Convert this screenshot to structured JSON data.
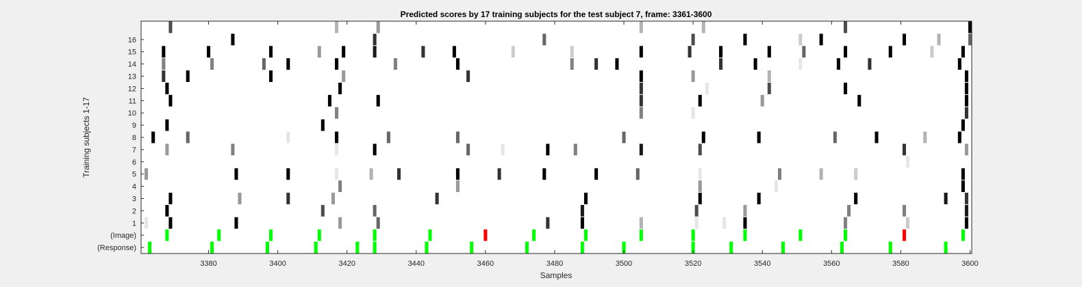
{
  "chart_data": {
    "type": "heatmap",
    "title": "Predicted scores by 17 training subjects for the test subject 7, frame: 3361-3600",
    "xlabel": "Samples",
    "ylabel": "Training subjects 1-17",
    "xlim": [
      3361,
      3600
    ],
    "xticks": [
      3380,
      3400,
      3420,
      3440,
      3460,
      3480,
      3500,
      3520,
      3540,
      3560,
      3580,
      3600
    ],
    "row_labels": [
      "(Response)",
      "(Image)",
      "1",
      "2",
      "3",
      "4",
      "5",
      "6",
      "7",
      "8",
      "9",
      "10",
      "11",
      "12",
      "13",
      "14",
      "15",
      "16",
      ""
    ],
    "colors": {
      "background": "#f0f0f0",
      "plot_bg": "#ffffff",
      "correct": "#00ff00",
      "incorrect": "#ff0000",
      "score_dark": "#000000"
    },
    "marker_encoding": "value = gray darkness 0-1 (1 = black); green = correct marker, red = incorrect marker",
    "response_markers": [
      3363,
      3381,
      3397,
      3411,
      3423,
      3428,
      3443,
      3456,
      3472,
      3488,
      3500,
      3520,
      3531,
      3546,
      3563,
      3577,
      3593
    ],
    "image_markers": [
      {
        "x": 3368,
        "status": "correct"
      },
      {
        "x": 3383,
        "status": "correct"
      },
      {
        "x": 3398,
        "status": "correct"
      },
      {
        "x": 3412,
        "status": "correct"
      },
      {
        "x": 3428,
        "status": "correct"
      },
      {
        "x": 3444,
        "status": "correct"
      },
      {
        "x": 3460,
        "status": "incorrect"
      },
      {
        "x": 3474,
        "status": "correct"
      },
      {
        "x": 3489,
        "status": "correct"
      },
      {
        "x": 3505,
        "status": "correct"
      },
      {
        "x": 3520,
        "status": "correct"
      },
      {
        "x": 3535,
        "status": "correct"
      },
      {
        "x": 3551,
        "status": "correct"
      },
      {
        "x": 3564,
        "status": "correct"
      },
      {
        "x": 3581,
        "status": "incorrect"
      },
      {
        "x": 3598,
        "status": "correct"
      }
    ],
    "subject_scores": [
      {
        "row": 1,
        "cells": [
          [
            3362,
            0.1
          ],
          [
            3369,
            1
          ],
          [
            3388,
            1
          ],
          [
            3418,
            0.4
          ],
          [
            3429,
            0.6
          ],
          [
            3478,
            0.8
          ],
          [
            3488,
            1
          ],
          [
            3505,
            0.3
          ],
          [
            3521,
            0.1
          ],
          [
            3529,
            0.1
          ],
          [
            3535,
            1
          ],
          [
            3564,
            0.5
          ],
          [
            3582,
            0.2
          ],
          [
            3599,
            1
          ]
        ]
      },
      {
        "row": 2,
        "cells": [
          [
            3368,
            1
          ],
          [
            3413,
            0.7
          ],
          [
            3428,
            0.6
          ],
          [
            3488,
            0.9
          ],
          [
            3521,
            0.7
          ],
          [
            3535,
            0.4
          ],
          [
            3565,
            0.5
          ],
          [
            3581,
            0.5
          ],
          [
            3599,
            0.9
          ]
        ]
      },
      {
        "row": 3,
        "cells": [
          [
            3369,
            1
          ],
          [
            3389,
            0.4
          ],
          [
            3403,
            0.8
          ],
          [
            3416,
            0.4
          ],
          [
            3446,
            0.8
          ],
          [
            3489,
            1
          ],
          [
            3522,
            1
          ],
          [
            3539,
            1
          ],
          [
            3567,
            1
          ],
          [
            3593,
            0.9
          ],
          [
            3599,
            0.8
          ]
        ]
      },
      {
        "row": 4,
        "cells": [
          [
            3418,
            0.5
          ],
          [
            3452,
            0.4
          ],
          [
            3522,
            0.4
          ],
          [
            3544,
            0.1
          ],
          [
            3598,
            1
          ]
        ]
      },
      {
        "row": 5,
        "cells": [
          [
            3362,
            0.4
          ],
          [
            3388,
            1
          ],
          [
            3403,
            1
          ],
          [
            3417,
            0.1
          ],
          [
            3427,
            0.3
          ],
          [
            3435,
            0.8
          ],
          [
            3452,
            1
          ],
          [
            3464,
            0.8
          ],
          [
            3477,
            1
          ],
          [
            3492,
            1
          ],
          [
            3504,
            0.6
          ],
          [
            3522,
            0.1
          ],
          [
            3545,
            0.5
          ],
          [
            3557,
            0.3
          ],
          [
            3567,
            0.2
          ],
          [
            3598,
            1
          ]
        ]
      },
      {
        "row": 6,
        "cells": [
          [
            3582,
            0.1
          ]
        ]
      },
      {
        "row": 7,
        "cells": [
          [
            3368,
            0.4
          ],
          [
            3387,
            0.5
          ],
          [
            3417,
            0.1
          ],
          [
            3428,
            1
          ],
          [
            3455,
            0.6
          ],
          [
            3465,
            0.1
          ],
          [
            3478,
            1
          ],
          [
            3486,
            0.5
          ],
          [
            3505,
            0.9
          ],
          [
            3522,
            0.7
          ],
          [
            3581,
            0.8
          ],
          [
            3599,
            0.4
          ]
        ]
      },
      {
        "row": 8,
        "cells": [
          [
            3364,
            1
          ],
          [
            3374,
            0.6
          ],
          [
            3403,
            0.1
          ],
          [
            3417,
            1
          ],
          [
            3432,
            0.6
          ],
          [
            3452,
            0.6
          ],
          [
            3500,
            0.6
          ],
          [
            3523,
            1
          ],
          [
            3539,
            1
          ],
          [
            3561,
            0.6
          ],
          [
            3573,
            1
          ],
          [
            3587,
            0.3
          ],
          [
            3597,
            1
          ]
        ]
      },
      {
        "row": 9,
        "cells": [
          [
            3368,
            1
          ],
          [
            3413,
            1
          ],
          [
            3598,
            1
          ]
        ]
      },
      {
        "row": 10,
        "cells": [
          [
            3417,
            0.5
          ],
          [
            3505,
            0.5
          ],
          [
            3520,
            0.1
          ],
          [
            3599,
            0.8
          ]
        ]
      },
      {
        "row": 11,
        "cells": [
          [
            3369,
            1
          ],
          [
            3415,
            1
          ],
          [
            3429,
            1
          ],
          [
            3505,
            0.8
          ],
          [
            3522,
            1
          ],
          [
            3540,
            0.4
          ],
          [
            3568,
            1
          ],
          [
            3599,
            1
          ]
        ]
      },
      {
        "row": 12,
        "cells": [
          [
            3368,
            1
          ],
          [
            3418,
            1
          ],
          [
            3505,
            0.8
          ],
          [
            3524,
            0.1
          ],
          [
            3542,
            0.7
          ],
          [
            3564,
            1
          ],
          [
            3599,
            1
          ]
        ]
      },
      {
        "row": 13,
        "cells": [
          [
            3367,
            0.8
          ],
          [
            3374,
            1
          ],
          [
            3398,
            1
          ],
          [
            3419,
            0.4
          ],
          [
            3455,
            0.8
          ],
          [
            3505,
            1
          ],
          [
            3520,
            0.4
          ],
          [
            3542,
            0.3
          ],
          [
            3599,
            1
          ]
        ]
      },
      {
        "row": 14,
        "cells": [
          [
            3367,
            0.5
          ],
          [
            3381,
            0.5
          ],
          [
            3396,
            0.6
          ],
          [
            3403,
            1
          ],
          [
            3417,
            1
          ],
          [
            3434,
            0.5
          ],
          [
            3452,
            1
          ],
          [
            3485,
            0.5
          ],
          [
            3492,
            0.8
          ],
          [
            3498,
            1
          ],
          [
            3528,
            0.8
          ],
          [
            3538,
            1
          ],
          [
            3551,
            0.1
          ],
          [
            3562,
            1
          ],
          [
            3571,
            0.8
          ],
          [
            3597,
            1
          ]
        ]
      },
      {
        "row": 15,
        "cells": [
          [
            3367,
            1
          ],
          [
            3380,
            1
          ],
          [
            3398,
            1
          ],
          [
            3412,
            0.4
          ],
          [
            3419,
            1
          ],
          [
            3428,
            0.9
          ],
          [
            3442,
            0.8
          ],
          [
            3451,
            1
          ],
          [
            3468,
            0.2
          ],
          [
            3485,
            0.2
          ],
          [
            3505,
            1
          ],
          [
            3519,
            0.8
          ],
          [
            3528,
            1
          ],
          [
            3542,
            1
          ],
          [
            3552,
            0.6
          ],
          [
            3564,
            1
          ],
          [
            3577,
            1
          ],
          [
            3589,
            0.2
          ],
          [
            3598,
            1
          ]
        ]
      },
      {
        "row": 16,
        "cells": [
          [
            3387,
            1
          ],
          [
            3428,
            0.8
          ],
          [
            3477,
            0.6
          ],
          [
            3520,
            0.7
          ],
          [
            3535,
            1
          ],
          [
            3551,
            0.2
          ],
          [
            3557,
            1
          ],
          [
            3581,
            1
          ],
          [
            3591,
            0.3
          ],
          [
            3600,
            0.6
          ]
        ]
      },
      {
        "row": 17,
        "cells": [
          [
            3369,
            0.7
          ],
          [
            3417,
            0.3
          ],
          [
            3429,
            0.4
          ],
          [
            3505,
            0.3
          ],
          [
            3523,
            0.3
          ],
          [
            3564,
            0.7
          ],
          [
            3600,
            1
          ]
        ]
      }
    ]
  }
}
